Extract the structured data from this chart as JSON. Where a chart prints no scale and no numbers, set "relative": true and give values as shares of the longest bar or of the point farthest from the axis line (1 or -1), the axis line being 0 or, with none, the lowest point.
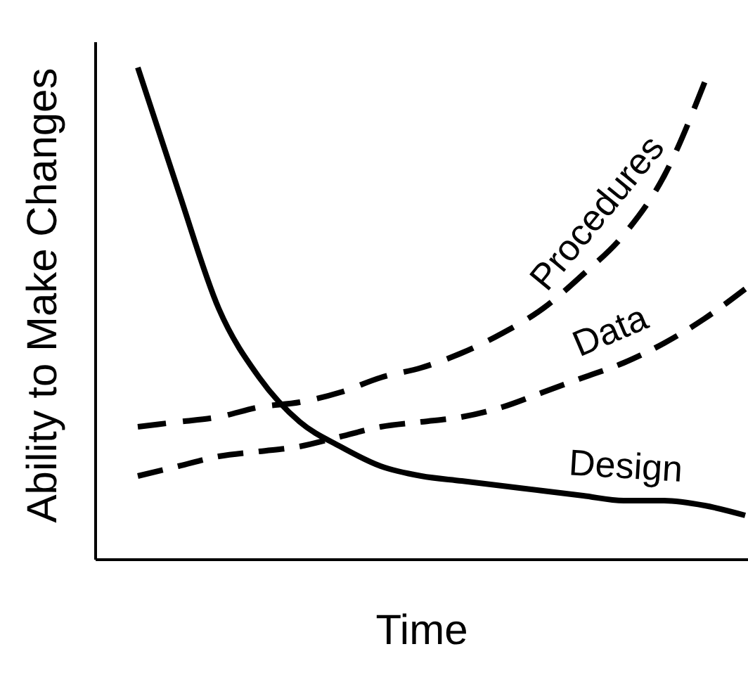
{
  "chart_data": {
    "type": "line",
    "relative": true,
    "xlabel": "Time",
    "ylabel": "Ability to Make Changes",
    "categories": [
      null,
      null,
      null,
      null,
      null,
      null,
      null,
      null,
      null,
      null,
      null,
      null,
      null,
      null,
      null,
      null
    ],
    "series": [
      {
        "name": "Design",
        "color": "#000000",
        "line_style": "solid",
        "values": [
          1.0,
          0.75,
          0.51,
          0.37,
          0.28,
          0.23,
          0.19,
          0.17,
          0.16,
          0.15,
          0.14,
          0.13,
          0.12,
          0.12,
          0.11,
          0.09
        ]
      },
      {
        "name": "Procedures",
        "color": "#000000",
        "line_style": "dashed",
        "values": [
          0.27,
          0.28,
          0.29,
          0.31,
          0.32,
          0.34,
          0.37,
          0.39,
          0.42,
          0.46,
          0.51,
          0.58,
          0.66,
          0.78,
          0.97,
          null
        ]
      },
      {
        "name": "Data",
        "color": "#000000",
        "line_style": "dashed",
        "values": [
          0.17,
          0.19,
          0.21,
          0.22,
          0.23,
          0.25,
          0.27,
          0.28,
          0.29,
          0.31,
          0.34,
          0.37,
          0.4,
          0.44,
          0.49,
          0.55
        ]
      }
    ]
  }
}
